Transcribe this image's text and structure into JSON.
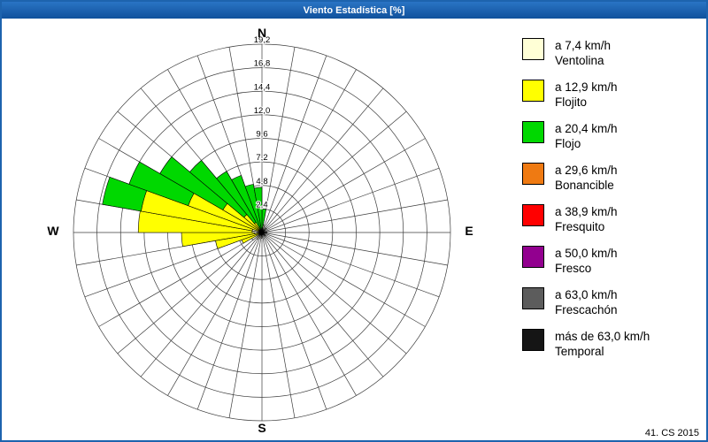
{
  "window": {
    "title": "Viento Estadística [%]",
    "footer": "41. CS 2015"
  },
  "chart_data": {
    "type": "wind-rose",
    "title": "Viento Estadística [%]",
    "units": "%",
    "compass": {
      "n": "N",
      "e": "E",
      "s": "S",
      "w": "W"
    },
    "radial_ticks": [
      "2,4",
      "4,8",
      "7,2",
      "9,6",
      "12,0",
      "14,4",
      "16,8",
      "19,2"
    ],
    "radial_max": 19.2,
    "ring_step": 2.4,
    "spoke_step_deg": 10,
    "sector_width_deg": 10,
    "grid": "on",
    "legend_position": "right",
    "speed_classes": [
      {
        "id": "ventolina",
        "label_speed": "a 7,4 km/h",
        "label_name": "Ventolina",
        "color": "#FFFFD6"
      },
      {
        "id": "flojito",
        "label_speed": "a 12,9 km/h",
        "label_name": "Flojito",
        "color": "#FFFF00"
      },
      {
        "id": "flojo",
        "label_speed": "a 20,4 km/h",
        "label_name": "Flojo",
        "color": "#00D800"
      },
      {
        "id": "bonancible",
        "label_speed": "a 29,6 km/h",
        "label_name": "Bonancible",
        "color": "#EF7A12"
      },
      {
        "id": "fresquito",
        "label_speed": "a 38,9 km/h",
        "label_name": "Fresquito",
        "color": "#FF0000"
      },
      {
        "id": "fresco",
        "label_speed": "a 50,0 km/h",
        "label_name": "Fresco",
        "color": "#92008F"
      },
      {
        "id": "frescachon",
        "label_speed": "a 63,0 km/h",
        "label_name": "Frescachón",
        "color": "#5C5C5C"
      },
      {
        "id": "temporal",
        "label_speed": "más de 63,0 km/h",
        "label_name": "Temporal",
        "color": "#151515"
      }
    ],
    "petals": [
      {
        "dir_deg": 5,
        "values": {
          "flojo": 2.4
        }
      },
      {
        "dir_deg": 15,
        "values": {
          "ventolina": 0.8
        }
      },
      {
        "dir_deg": 45,
        "values": {
          "ventolina": 0.6
        }
      },
      {
        "dir_deg": 90,
        "values": {
          "ventolina": 0.5
        }
      },
      {
        "dir_deg": 135,
        "values": {
          "ventolina": 0.5
        }
      },
      {
        "dir_deg": 185,
        "values": {
          "ventolina": 0.6
        }
      },
      {
        "dir_deg": 215,
        "values": {
          "ventolina": 0.8
        }
      },
      {
        "dir_deg": 235,
        "values": {
          "ventolina": 1.2
        }
      },
      {
        "dir_deg": 245,
        "values": {
          "flojito": 2.2
        }
      },
      {
        "dir_deg": 255,
        "values": {
          "flojito": 4.8
        }
      },
      {
        "dir_deg": 265,
        "values": {
          "ventolina": 0.8,
          "flojito": 7.4
        }
      },
      {
        "dir_deg": 275,
        "values": {
          "ventolina": 1.0,
          "flojito": 11.6
        }
      },
      {
        "dir_deg": 285,
        "values": {
          "ventolina": 1.0,
          "flojito": 11.5,
          "flojo": 4.0
        }
      },
      {
        "dir_deg": 295,
        "values": {
          "flojito": 8.0,
          "flojo": 6.4
        }
      },
      {
        "dir_deg": 305,
        "values": {
          "flojito": 4.6,
          "flojo": 7.4
        }
      },
      {
        "dir_deg": 315,
        "values": {
          "flojito": 2.4,
          "flojo": 7.2
        }
      },
      {
        "dir_deg": 325,
        "values": {
          "flojito": 1.2,
          "flojo": 6.0
        }
      },
      {
        "dir_deg": 335,
        "values": {
          "flojo": 6.2
        }
      },
      {
        "dir_deg": 345,
        "values": {
          "flojo": 5.0
        }
      },
      {
        "dir_deg": 355,
        "values": {
          "flojo": 4.6
        }
      }
    ]
  }
}
